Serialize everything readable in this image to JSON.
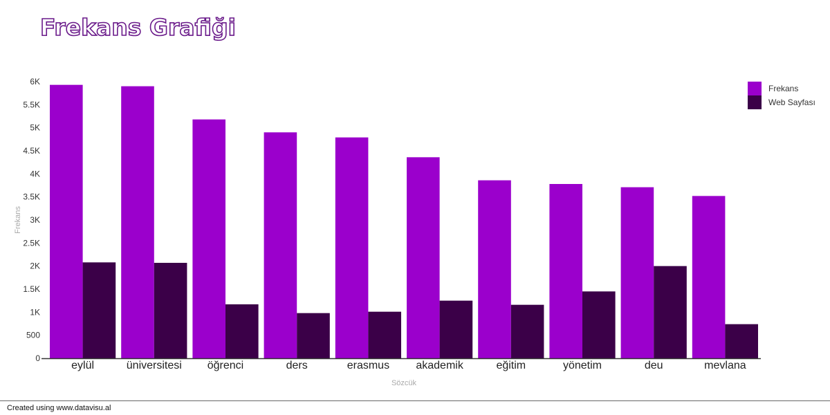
{
  "chart_data": {
    "type": "bar",
    "title": "Frekans Grafiği",
    "xlabel": "Sözcük",
    "ylabel": "Frekans",
    "ylim": [
      0,
      6000
    ],
    "yticks": [
      0,
      500,
      1000,
      1500,
      2000,
      2500,
      3000,
      3500,
      4000,
      4500,
      5000,
      5500,
      6000
    ],
    "ytick_labels": [
      "0",
      "500",
      "1K",
      "1.5K",
      "2K",
      "2.5K",
      "3K",
      "3.5K",
      "4K",
      "4.5K",
      "5K",
      "5.5K",
      "6K"
    ],
    "categories": [
      "eylül",
      "üniversitesi",
      "öğrenci",
      "ders",
      "erasmus",
      "akademik",
      "eğitim",
      "yönetim",
      "deu",
      "mevlana"
    ],
    "series": [
      {
        "name": "Frekans",
        "color": "#9b00cc",
        "values": [
          5930,
          5900,
          5180,
          4900,
          4790,
          4360,
          3860,
          3780,
          3710,
          3520
        ]
      },
      {
        "name": "Web Sayfası",
        "color": "#3b0048",
        "values": [
          2080,
          2070,
          1170,
          980,
          1010,
          1250,
          1160,
          1450,
          2000,
          740
        ]
      }
    ],
    "grid": false,
    "legend_position": "top-right"
  },
  "footer": {
    "credit": "Created using www.datavisu.al"
  }
}
